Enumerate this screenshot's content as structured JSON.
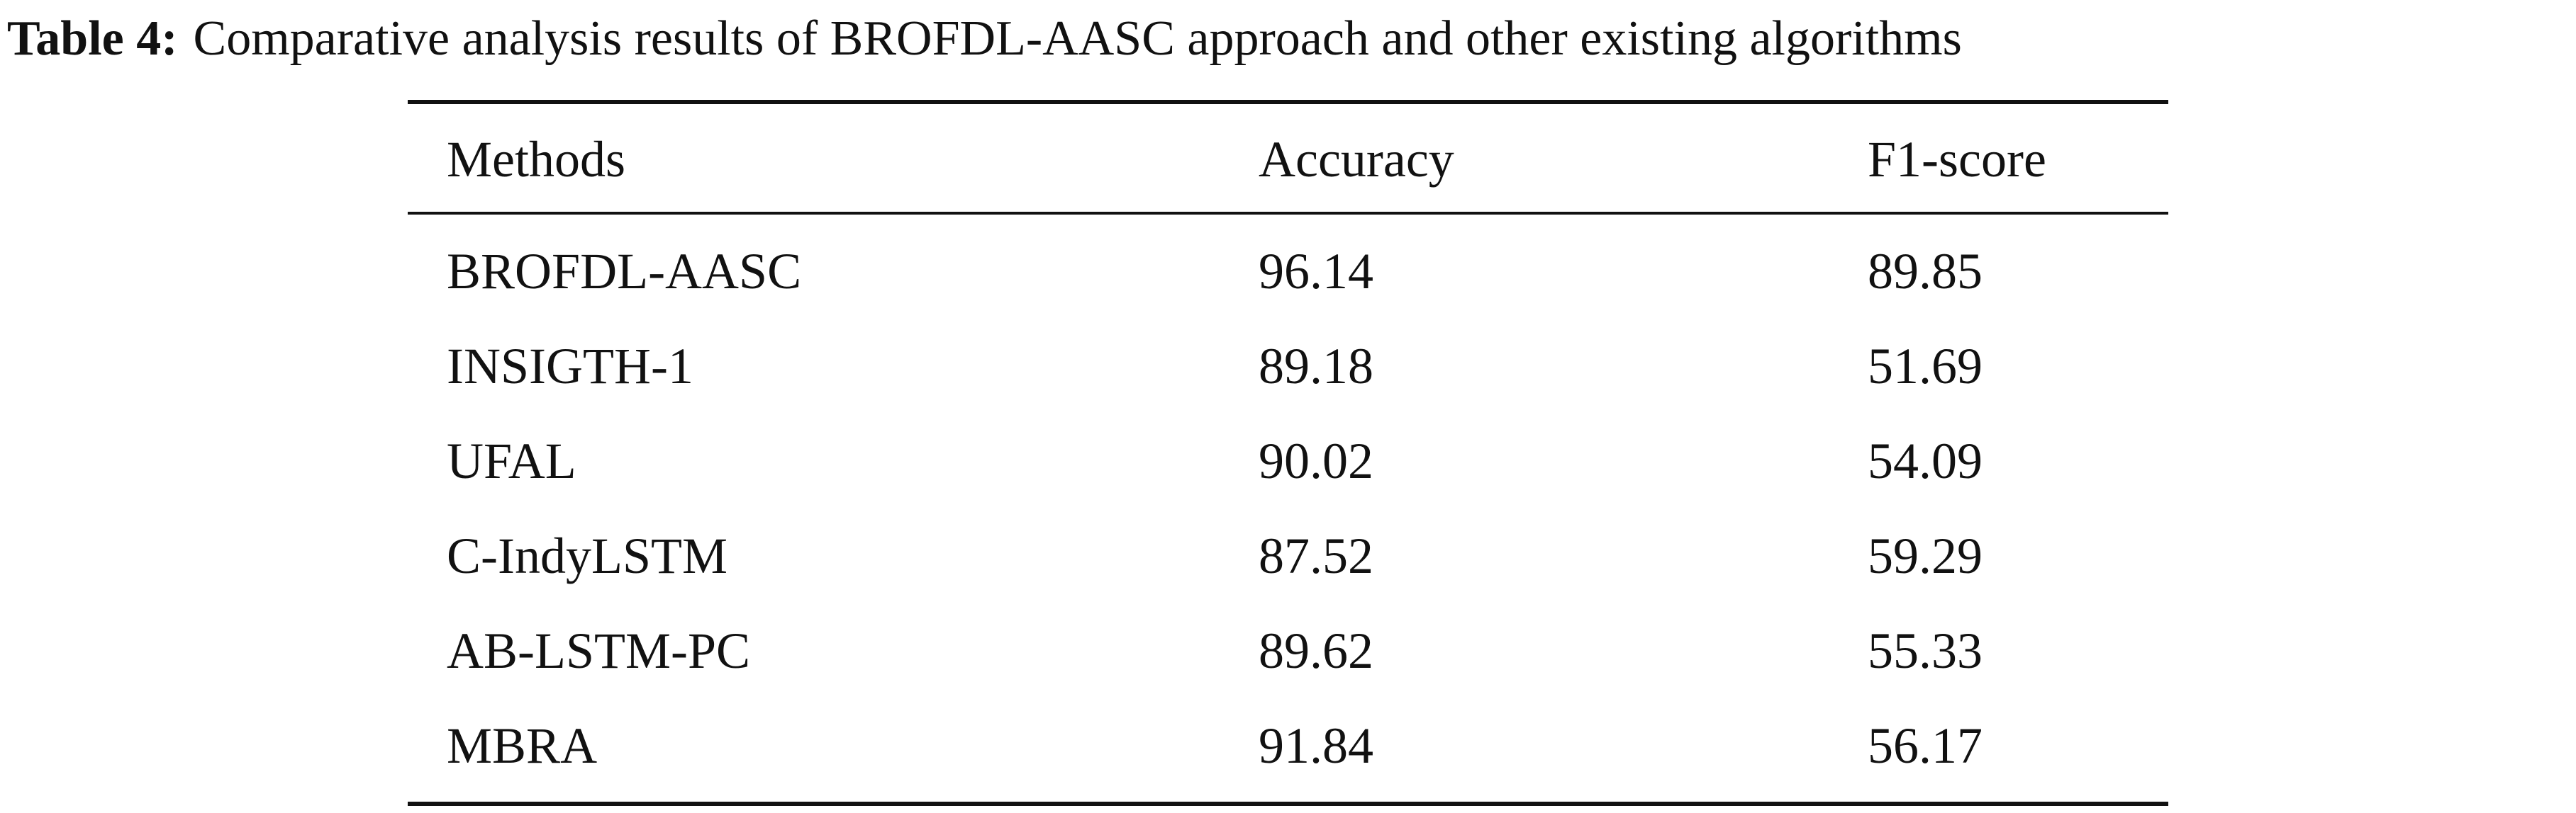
{
  "caption": {
    "label": "Table 4:",
    "text": "Comparative analysis results of BROFDL-AASC approach and other existing algorithms"
  },
  "table": {
    "header": [
      "Methods",
      "Accuracy",
      "F1-score"
    ],
    "rows": [
      [
        "BROFDL-AASC",
        "96.14",
        "89.85"
      ],
      [
        "INSIGTH-1",
        "89.18",
        "51.69"
      ],
      [
        "UFAL",
        "90.02",
        "54.09"
      ],
      [
        "C-IndyLSTM",
        "87.52",
        "59.29"
      ],
      [
        "AB-LSTM-PC",
        "89.62",
        "55.33"
      ],
      [
        "MBRA",
        "91.84",
        "56.17"
      ]
    ]
  }
}
